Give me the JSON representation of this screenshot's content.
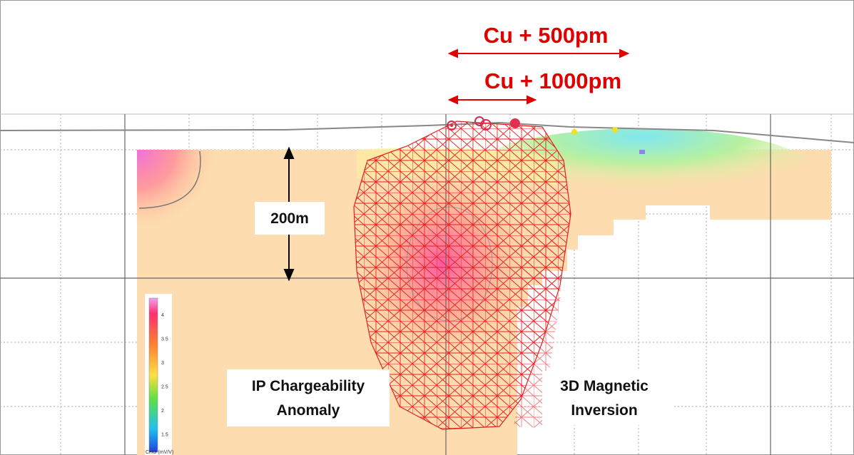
{
  "annotations": {
    "cu_500": "Cu + 500pm",
    "cu_1000": "Cu + 1000pm",
    "depth": "200m",
    "ip_label": [
      "IP Chargeability",
      "Anomaly"
    ],
    "mag_label": [
      "3D Magnetic",
      "Inversion"
    ]
  },
  "colorbar": {
    "ticks": [
      "4",
      "3.5",
      "3",
      "2.5",
      "2",
      "1.5"
    ],
    "title": "CHG (mV/V)"
  }
}
